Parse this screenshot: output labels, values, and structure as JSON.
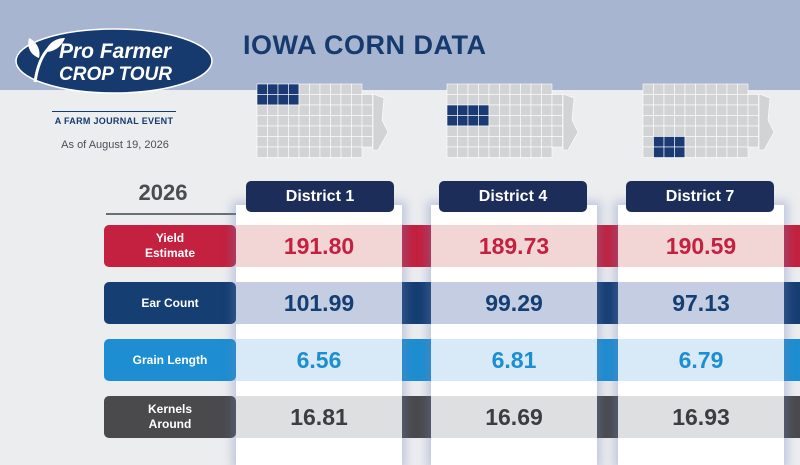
{
  "header": {
    "title": "IOWA CORN DATA",
    "logo_line1": "Pro Farmer",
    "logo_line2": "CROP TOUR",
    "tagline": "A FARM JOURNAL EVENT",
    "as_of": "As of August 19, 2026"
  },
  "table": {
    "year": "2026",
    "districts": [
      {
        "label": "District 1",
        "map_icon": "iowa-map-district-1-highlighted"
      },
      {
        "label": "District 4",
        "map_icon": "iowa-map-district-4-highlighted"
      },
      {
        "label": "District 7",
        "map_icon": "iowa-map-district-7-highlighted"
      }
    ],
    "rows": [
      {
        "label": "Yield Estimate",
        "values": [
          "191.80",
          "189.73",
          "190.59"
        ],
        "label_color": "#c3213f",
        "fill_color": "#f1d6d5",
        "value_color": "#c3213f"
      },
      {
        "label": "Ear Count",
        "values": [
          "101.99",
          "99.29",
          "97.13"
        ],
        "label_color": "#153e72",
        "fill_color": "#c4cde2",
        "value_color": "#153e72"
      },
      {
        "label": "Grain Length",
        "values": [
          "6.56",
          "6.81",
          "6.79"
        ],
        "label_color": "#1d8ed1",
        "fill_color": "#d8e9f7",
        "value_color": "#1d8ed1"
      },
      {
        "label": "Kernels Around",
        "values": [
          "16.81",
          "16.69",
          "16.93"
        ],
        "label_color": "#4a4a4c",
        "fill_color": "#dedfe1",
        "value_color": "#3c3d40"
      }
    ]
  },
  "colors": {
    "header_band": "#a7b5d0",
    "title": "#163a6d",
    "district_header": "#1d2d5a",
    "map_fill": "#d2d3d5",
    "map_highlight": "#1b3a73"
  }
}
